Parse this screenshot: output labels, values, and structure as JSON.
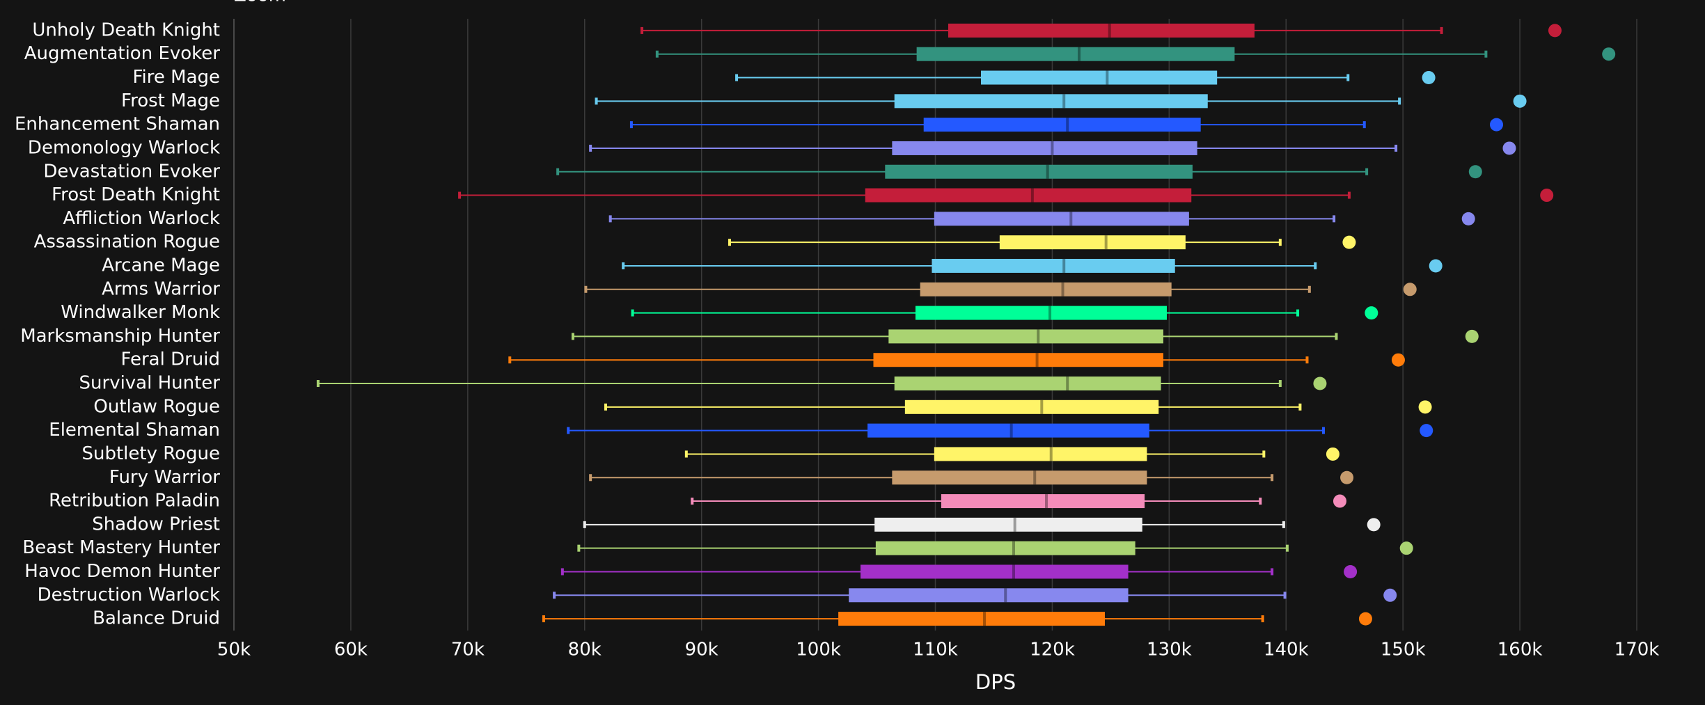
{
  "chart_data": {
    "type": "box",
    "zoom_label": "Zoom",
    "x_label": "DPS",
    "categories": [
      "Unholy Death Knight",
      "Augmentation Evoker",
      "Fire Mage",
      "Frost Mage",
      "Enhancement Shaman",
      "Demonology Warlock",
      "Devastation Evoker",
      "Frost Death Knight",
      "Affliction Warlock",
      "Assassination Rogue",
      "Arcane Mage",
      "Arms Warrior",
      "Windwalker Monk",
      "Marksmanship Hunter",
      "Feral Druid",
      "Survival Hunter",
      "Outlaw Rogue",
      "Elemental Shaman",
      "Subtlety Rogue",
      "Fury Warrior",
      "Retribution Paladin",
      "Shadow Priest",
      "Beast Mastery Hunter",
      "Havoc Demon Hunter",
      "Destruction Warlock",
      "Balance Druid"
    ],
    "colors": [
      "#c41e3a",
      "#33937f",
      "#69ccf0",
      "#69ccf0",
      "#2459ff",
      "#8788ee",
      "#33937f",
      "#c41e3a",
      "#8788ee",
      "#fff468",
      "#69ccf0",
      "#c69b6d",
      "#00ff98",
      "#aad372",
      "#ff7c0a",
      "#aad372",
      "#fff468",
      "#2459ff",
      "#fff468",
      "#c69b6d",
      "#f48cba",
      "#eeeeee",
      "#aad372",
      "#a330c9",
      "#8788ee",
      "#ff7c0a"
    ],
    "whisker_low": [
      84900,
      86200,
      93000,
      81000,
      84000,
      80500,
      77700,
      69300,
      82200,
      92400,
      83300,
      80100,
      84100,
      79000,
      73600,
      57200,
      81800,
      78600,
      88700,
      80500,
      89200,
      80000,
      79500,
      78100,
      77400,
      76500
    ],
    "q1": [
      111100,
      108400,
      113900,
      106500,
      109000,
      106300,
      105700,
      104000,
      109900,
      115500,
      109700,
      108700,
      108300,
      106000,
      104700,
      106500,
      107400,
      104200,
      109900,
      106300,
      110500,
      104800,
      104900,
      103600,
      102600,
      101700
    ],
    "median": [
      124900,
      122300,
      124700,
      121000,
      121300,
      120000,
      119600,
      118300,
      121600,
      124600,
      121000,
      120900,
      119800,
      118800,
      118700,
      121300,
      119100,
      116500,
      119900,
      118500,
      119500,
      116800,
      116700,
      116700,
      116000,
      114200
    ],
    "q3": [
      137300,
      135600,
      134100,
      133300,
      132700,
      132400,
      132000,
      131900,
      131700,
      131400,
      130500,
      130200,
      129800,
      129500,
      129500,
      129300,
      129100,
      128300,
      128100,
      128100,
      127900,
      127700,
      127100,
      126500,
      126500,
      124500
    ],
    "whisker_high": [
      153300,
      157100,
      145300,
      149700,
      146700,
      149400,
      146900,
      145400,
      144100,
      139500,
      142500,
      142000,
      141000,
      144300,
      141800,
      139500,
      141200,
      143200,
      138100,
      138800,
      137800,
      139800,
      140100,
      138800,
      139900,
      138000
    ],
    "outliers": [
      163000,
      167600,
      152200,
      160000,
      158000,
      159100,
      156200,
      162300,
      155600,
      145400,
      152800,
      150600,
      147300,
      155900,
      149600,
      142900,
      151900,
      152000,
      144000,
      145200,
      144600,
      147500,
      150300,
      145500,
      148900,
      146800
    ],
    "xlim": [
      50000,
      170000
    ],
    "xticks": [
      {
        "value": 50000,
        "label": "50k"
      },
      {
        "value": 60000,
        "label": "60k"
      },
      {
        "value": 70000,
        "label": "70k"
      },
      {
        "value": 80000,
        "label": "80k"
      },
      {
        "value": 90000,
        "label": "90k"
      },
      {
        "value": 100000,
        "label": "100k"
      },
      {
        "value": 110000,
        "label": "110k"
      },
      {
        "value": 120000,
        "label": "120k"
      },
      {
        "value": 130000,
        "label": "130k"
      },
      {
        "value": 140000,
        "label": "140k"
      },
      {
        "value": 150000,
        "label": "150k"
      },
      {
        "value": 160000,
        "label": "160k"
      },
      {
        "value": 170000,
        "label": "170k"
      }
    ],
    "grid": true
  }
}
